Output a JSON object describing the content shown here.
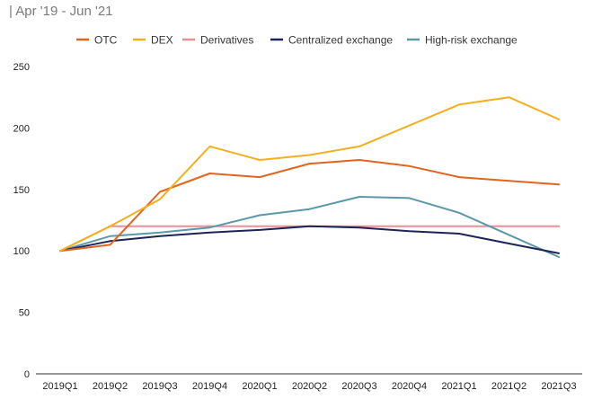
{
  "header": {
    "subtitle": "| Apr '19 - Jun '21"
  },
  "chart_data": {
    "type": "line",
    "title": "",
    "subtitle": "| Apr '19 - Jun '21",
    "xlabel": "",
    "ylabel": "",
    "ylim": [
      0,
      250
    ],
    "yticks": [
      0,
      50,
      100,
      150,
      200,
      250
    ],
    "grid": false,
    "legend_position": "top",
    "categories": [
      "2019Q1",
      "2019Q2",
      "2019Q3",
      "2019Q4",
      "2020Q1",
      "2020Q2",
      "2020Q3",
      "2020Q4",
      "2021Q1",
      "2021Q2",
      "2021Q3"
    ],
    "series": [
      {
        "name": "OTC",
        "color": "#e0651f",
        "values": [
          100,
          105,
          148,
          163,
          160,
          171,
          174,
          169,
          160,
          157,
          154
        ]
      },
      {
        "name": "DEX",
        "color": "#f2b01e",
        "values": [
          100,
          120,
          142,
          185,
          174,
          178,
          185,
          202,
          219,
          225,
          207
        ]
      },
      {
        "name": "Derivatives",
        "color": "#f08c95",
        "values": [
          100,
          120,
          120,
          120,
          120,
          120,
          120,
          120,
          120,
          120,
          120
        ]
      },
      {
        "name": "Centralized exchange",
        "color": "#1c2457",
        "values": [
          100,
          108,
          112,
          115,
          117,
          120,
          119,
          116,
          114,
          106,
          98
        ]
      },
      {
        "name": "High-risk exchange",
        "color": "#5b98a8",
        "values": [
          100,
          112,
          115,
          119,
          129,
          134,
          144,
          143,
          131,
          113,
          95
        ]
      }
    ]
  }
}
